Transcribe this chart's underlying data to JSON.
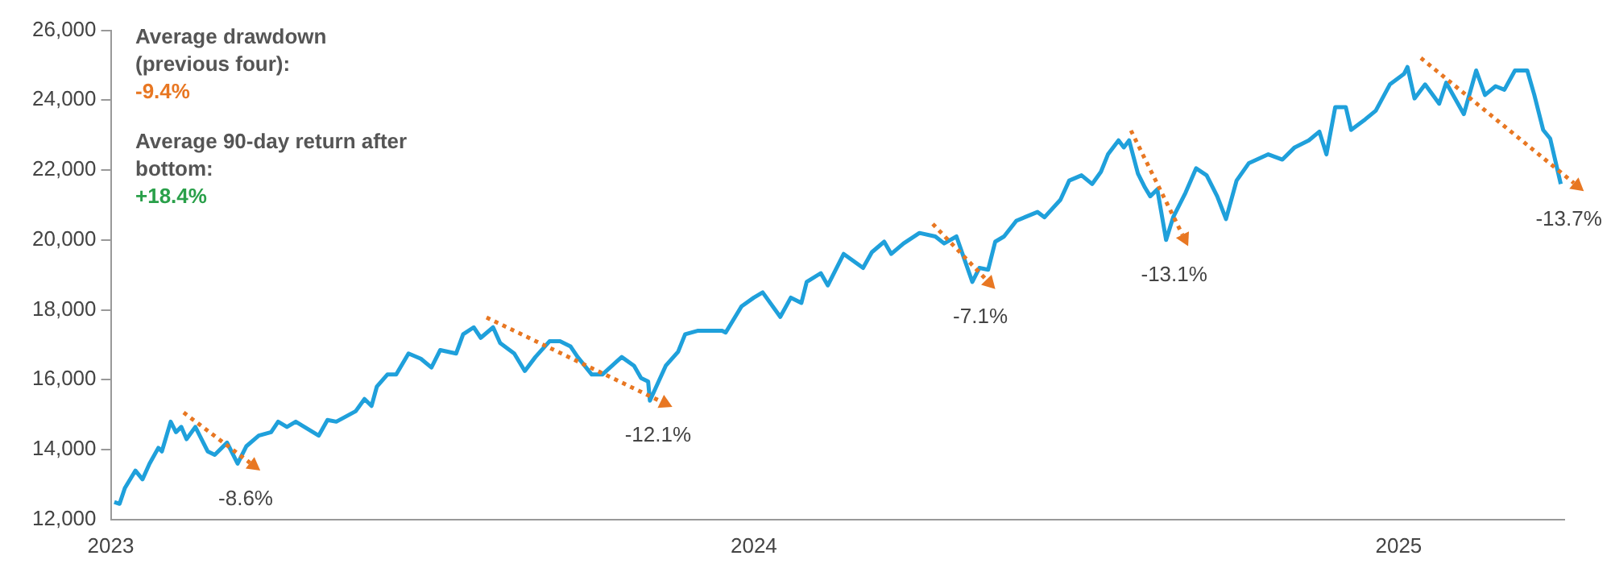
{
  "chart_data": {
    "type": "line",
    "x": [
      "2023-01-03",
      "2023-01-06",
      "2023-01-09",
      "2023-01-15",
      "2023-01-19",
      "2023-01-23",
      "2023-01-28",
      "2023-01-30",
      "2023-02-04",
      "2023-02-07",
      "2023-02-10",
      "2023-02-13",
      "2023-02-18",
      "2023-02-25",
      "2023-03-01",
      "2023-03-08",
      "2023-03-14",
      "2023-03-19",
      "2023-03-26",
      "2023-04-02",
      "2023-04-06",
      "2023-04-11",
      "2023-04-16",
      "2023-04-29",
      "2023-05-04",
      "2023-05-09",
      "2023-05-20",
      "2023-05-25",
      "2023-05-29",
      "2023-06-01",
      "2023-06-07",
      "2023-06-12",
      "2023-06-19",
      "2023-06-26",
      "2023-07-02",
      "2023-07-07",
      "2023-07-16",
      "2023-07-20",
      "2023-07-26",
      "2023-07-30",
      "2023-08-06",
      "2023-08-10",
      "2023-08-18",
      "2023-08-24",
      "2023-08-30",
      "2023-09-07",
      "2023-09-13",
      "2023-09-19",
      "2023-09-23",
      "2023-10-01",
      "2023-10-07",
      "2023-10-18",
      "2023-10-25",
      "2023-10-29",
      "2023-11-02",
      "2023-11-03",
      "2023-11-12",
      "2023-11-19",
      "2023-11-23",
      "2023-11-30",
      "2023-12-14",
      "2023-12-16",
      "2023-12-25",
      "2024-01-01",
      "2024-01-06",
      "2024-01-16",
      "2024-01-22",
      "2024-01-28",
      "2024-01-31",
      "2024-02-08",
      "2024-02-12",
      "2024-02-21",
      "2024-03-03",
      "2024-03-08",
      "2024-03-15",
      "2024-03-19",
      "2024-03-26",
      "2024-04-04",
      "2024-04-13",
      "2024-04-18",
      "2024-04-25",
      "2024-05-04",
      "2024-05-08",
      "2024-05-13",
      "2024-05-17",
      "2024-05-22",
      "2024-05-29",
      "2024-06-10",
      "2024-06-14",
      "2024-06-23",
      "2024-06-28",
      "2024-07-05",
      "2024-07-11",
      "2024-07-16",
      "2024-07-20",
      "2024-07-26",
      "2024-07-29",
      "2024-08-01",
      "2024-08-06",
      "2024-08-10",
      "2024-08-13",
      "2024-08-17",
      "2024-08-22",
      "2024-08-26",
      "2024-09-02",
      "2024-09-08",
      "2024-09-14",
      "2024-09-20",
      "2024-09-25",
      "2024-10-01",
      "2024-10-08",
      "2024-10-19",
      "2024-10-27",
      "2024-11-03",
      "2024-11-11",
      "2024-11-17",
      "2024-11-21",
      "2024-11-26",
      "2024-12-02",
      "2024-12-05",
      "2024-12-13",
      "2024-12-19",
      "2024-12-27",
      "2025-01-04",
      "2025-01-06",
      "2025-01-10",
      "2025-01-16",
      "2025-01-24",
      "2025-01-28",
      "2025-02-07",
      "2025-02-14",
      "2025-02-19",
      "2025-02-25",
      "2025-03-02",
      "2025-03-08",
      "2025-03-15",
      "2025-03-19",
      "2025-03-24",
      "2025-03-28",
      "2025-04-03"
    ],
    "series": [
      {
        "color": "#1fa0db",
        "values": [
          12500,
          12450,
          12900,
          13400,
          13150,
          13600,
          14050,
          13950,
          14800,
          14500,
          14650,
          14300,
          14650,
          13950,
          13850,
          14200,
          13600,
          14100,
          14400,
          14500,
          14800,
          14650,
          14800,
          14400,
          14850,
          14800,
          15100,
          15450,
          15250,
          15800,
          16150,
          16150,
          16750,
          16600,
          16350,
          16850,
          16750,
          17300,
          17500,
          17200,
          17500,
          17050,
          16750,
          16250,
          16650,
          17100,
          17100,
          16950,
          16650,
          16150,
          16150,
          16650,
          16400,
          16050,
          15950,
          15400,
          16400,
          16800,
          17300,
          17400,
          17400,
          17350,
          18100,
          18350,
          18500,
          17800,
          18350,
          18200,
          18800,
          19050,
          18700,
          19600,
          19200,
          19650,
          19950,
          19600,
          19900,
          20200,
          20100,
          19900,
          20100,
          18800,
          19200,
          19150,
          19950,
          20100,
          20550,
          20800,
          20650,
          21150,
          21700,
          21850,
          21600,
          21950,
          22450,
          22850,
          22650,
          22850,
          21900,
          21500,
          21250,
          21450,
          20000,
          20650,
          21350,
          22050,
          21850,
          21250,
          20600,
          21700,
          22200,
          22450,
          22300,
          22650,
          22850,
          23100,
          22450,
          23800,
          23800,
          23150,
          23450,
          23700,
          24450,
          24750,
          24950,
          24050,
          24450,
          23900,
          24500,
          23600,
          24850,
          24150,
          24400,
          24300,
          24850,
          24850,
          24150,
          23150,
          22900,
          21600
        ]
      }
    ],
    "xlim": [
      "2023-01-01",
      "2025-04-05"
    ],
    "xticks": [
      "2023",
      "2024",
      "2025"
    ],
    "ylim": [
      12000,
      26000
    ],
    "yticks": [
      {
        "value": 12000,
        "label": "12,000"
      },
      {
        "value": 14000,
        "label": "14,000"
      },
      {
        "value": 16000,
        "label": "16,000"
      },
      {
        "value": 18000,
        "label": "18,000"
      },
      {
        "value": 20000,
        "label": "20,000"
      },
      {
        "value": 22000,
        "label": "22,000"
      },
      {
        "value": 24000,
        "label": "24,000"
      },
      {
        "value": 26000,
        "label": "26,000"
      }
    ],
    "grid": false,
    "legend": false,
    "annotations": [
      "Average drawdown (previous four):",
      "-9.4%",
      "Average 90-day return after bottom:",
      "+18.4%",
      {
        "text": "-8.6%",
        "x": "2023-03-14",
        "y": 13600
      },
      {
        "text": "-12.1%",
        "x": "2023-11-03",
        "y": 15400
      },
      {
        "text": "-7.1%",
        "x": "2024-05-04",
        "y": 18800
      },
      {
        "text": "-13.1%",
        "x": "2024-08-22",
        "y": 20000
      },
      {
        "text": "-13.7%",
        "x": "2025-04-03",
        "y": 21600
      }
    ]
  }
}
